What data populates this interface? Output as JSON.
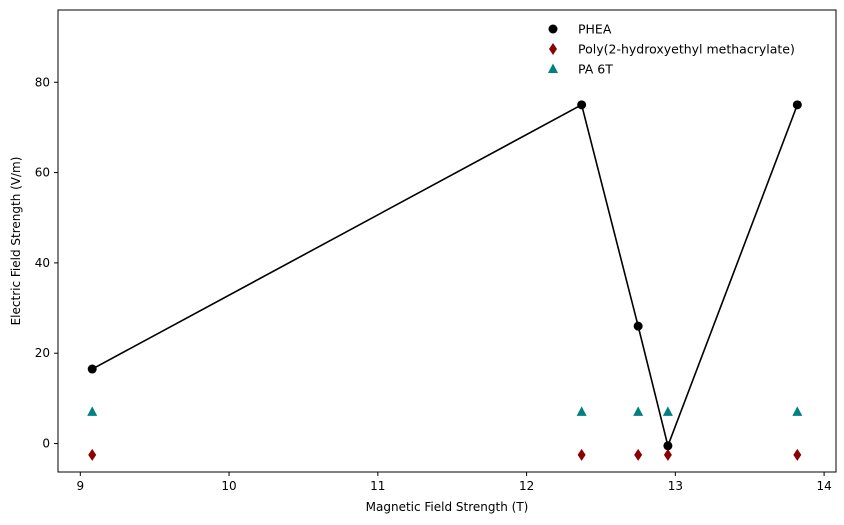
{
  "chart_data": {
    "type": "scatter",
    "title": "",
    "xlabel": "Magnetic Field Strength (T)",
    "ylabel": "Electric Field Strength (V/m)",
    "xlim": [
      8.85,
      14.08
    ],
    "ylim": [
      -6.3,
      96.0
    ],
    "xticks": [
      9,
      10,
      11,
      12,
      13,
      14
    ],
    "yticks": [
      0,
      20,
      40,
      60,
      80
    ],
    "grid": false,
    "legend_position": "top-right",
    "series": [
      {
        "name": "PHEA",
        "marker": "circle",
        "color": "#000000",
        "connected": true,
        "points": [
          {
            "x": 9.08,
            "y": 16.5
          },
          {
            "x": 12.37,
            "y": 75.0
          },
          {
            "x": 12.75,
            "y": 26.0
          },
          {
            "x": 12.95,
            "y": -0.5
          },
          {
            "x": 13.82,
            "y": 75.0
          }
        ]
      },
      {
        "name": "Poly(2-hydroxyethyl methacrylate)",
        "marker": "diamond",
        "color": "#8b0000",
        "connected": false,
        "points": [
          {
            "x": 9.08,
            "y": -2.5
          },
          {
            "x": 12.37,
            "y": -2.5
          },
          {
            "x": 12.75,
            "y": -2.5
          },
          {
            "x": 12.95,
            "y": -2.5
          },
          {
            "x": 13.82,
            "y": -2.5
          }
        ]
      },
      {
        "name": "PA 6T",
        "marker": "triangle",
        "color": "#008080",
        "connected": false,
        "points": [
          {
            "x": 9.08,
            "y": 7.0
          },
          {
            "x": 12.37,
            "y": 7.0
          },
          {
            "x": 12.75,
            "y": 7.0
          },
          {
            "x": 12.95,
            "y": 7.0
          },
          {
            "x": 13.82,
            "y": 7.0
          }
        ]
      }
    ]
  }
}
